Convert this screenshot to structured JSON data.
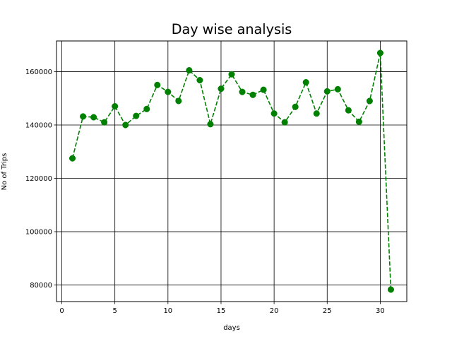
{
  "chart_data": {
    "type": "line",
    "title": "Day wise analysis",
    "xlabel": "days",
    "ylabel": "No of Trips",
    "x": [
      1,
      2,
      3,
      4,
      5,
      6,
      7,
      8,
      9,
      10,
      11,
      12,
      13,
      14,
      15,
      16,
      17,
      18,
      19,
      20,
      21,
      22,
      23,
      24,
      25,
      26,
      27,
      28,
      29,
      30,
      31
    ],
    "series": [
      {
        "color": "#008000",
        "line_style": "dashed",
        "marker": "circle",
        "values": [
          127500,
          143200,
          142900,
          141000,
          147000,
          140000,
          143400,
          146000,
          155000,
          152400,
          149000,
          160500,
          156800,
          140300,
          153600,
          159000,
          152400,
          151300,
          153200,
          144300,
          141000,
          146800,
          156000,
          144300,
          152600,
          153400,
          145500,
          141200,
          149000,
          167000,
          78300
        ]
      }
    ],
    "xlim": [
      -0.5,
      32.5
    ],
    "ylim": [
      73800,
      171500
    ],
    "xticks": [
      0,
      5,
      10,
      15,
      20,
      25,
      30
    ],
    "yticks": [
      80000,
      100000,
      120000,
      140000,
      160000
    ],
    "grid": true,
    "grid_color": "#000000"
  }
}
